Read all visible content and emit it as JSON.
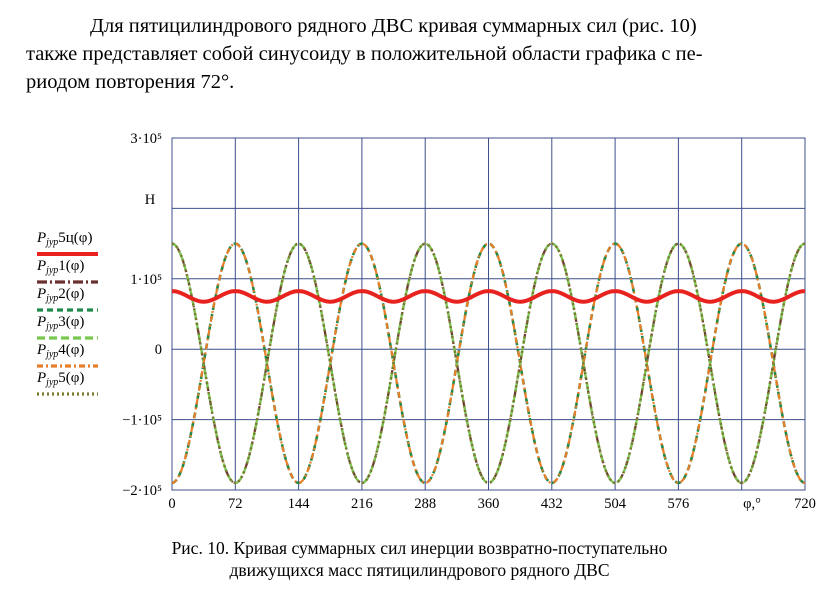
{
  "text": {
    "paragraph_line1": "Для пятицилиндрового рядного ДВС кривая суммарных сил (рис. 10)",
    "paragraph_line2": "также представляет собой синусоиду в положительной области графика с пе-",
    "paragraph_line3": "риодом повторения 72°.",
    "caption_line1": "Рис. 10. Кривая суммарных сил инерции возвратно-поступательно",
    "caption_line2": "движущихся масс пятицилиндрового рядного ДВС"
  },
  "chart_data": {
    "type": "line",
    "xlabel": "φ,°",
    "ylabel": "Н",
    "xlim": [
      0,
      720
    ],
    "ylim": [
      -200000,
      300000
    ],
    "x_ticks": [
      0,
      72,
      144,
      216,
      288,
      360,
      432,
      504,
      576,
      720
    ],
    "x_tick_labels": [
      "0",
      "72",
      "144",
      "216",
      "288",
      "360",
      "432",
      "504",
      "576",
      "720"
    ],
    "y_tick_labels": [
      "3·10⁵",
      "1·10⁵",
      "0",
      "−1·10⁵",
      "−2·10⁵"
    ],
    "y_tick_values": [
      300000,
      100000,
      0,
      -100000,
      -200000
    ],
    "gridlines_x": [
      72,
      144,
      216,
      288,
      360,
      432,
      504,
      576,
      648
    ],
    "gridlines_y": [
      200000,
      100000,
      0,
      -100000
    ],
    "amplitude": 170000,
    "sum_series": {
      "name_P": "P",
      "name_sub": "jур",
      "name_suffix": "5ц(φ)",
      "color": "#e8221e",
      "mean": 75000,
      "amplitude": 7500,
      "period": 72,
      "phase_deg": 0
    },
    "series": [
      {
        "name_P": "P",
        "name_sub": "jур",
        "name_suffix": "1(φ)",
        "color": "#6b3030",
        "dash": "10,3,2,3",
        "width": 2.2,
        "phase_deg": 0
      },
      {
        "name_P": "P",
        "name_sub": "jур",
        "name_suffix": "2(φ)",
        "color": "#1e8a4a",
        "dash": "6,4",
        "width": 2.6,
        "phase_deg": 72
      },
      {
        "name_P": "P",
        "name_sub": "jур",
        "name_suffix": "3(φ)",
        "color": "#78c850",
        "dash": "8,4",
        "width": 2.2,
        "phase_deg": 144
      },
      {
        "name_P": "P",
        "name_sub": "jур",
        "name_suffix": "4(φ)",
        "color": "#e87e28",
        "dash": "6,3,2,3",
        "width": 2.2,
        "phase_deg": 216
      },
      {
        "name_P": "P",
        "name_sub": "jур",
        "name_suffix": "5(φ)",
        "color": "#7a7a30",
        "dash": "2,3",
        "width": 2.6,
        "phase_deg": 288
      }
    ]
  }
}
